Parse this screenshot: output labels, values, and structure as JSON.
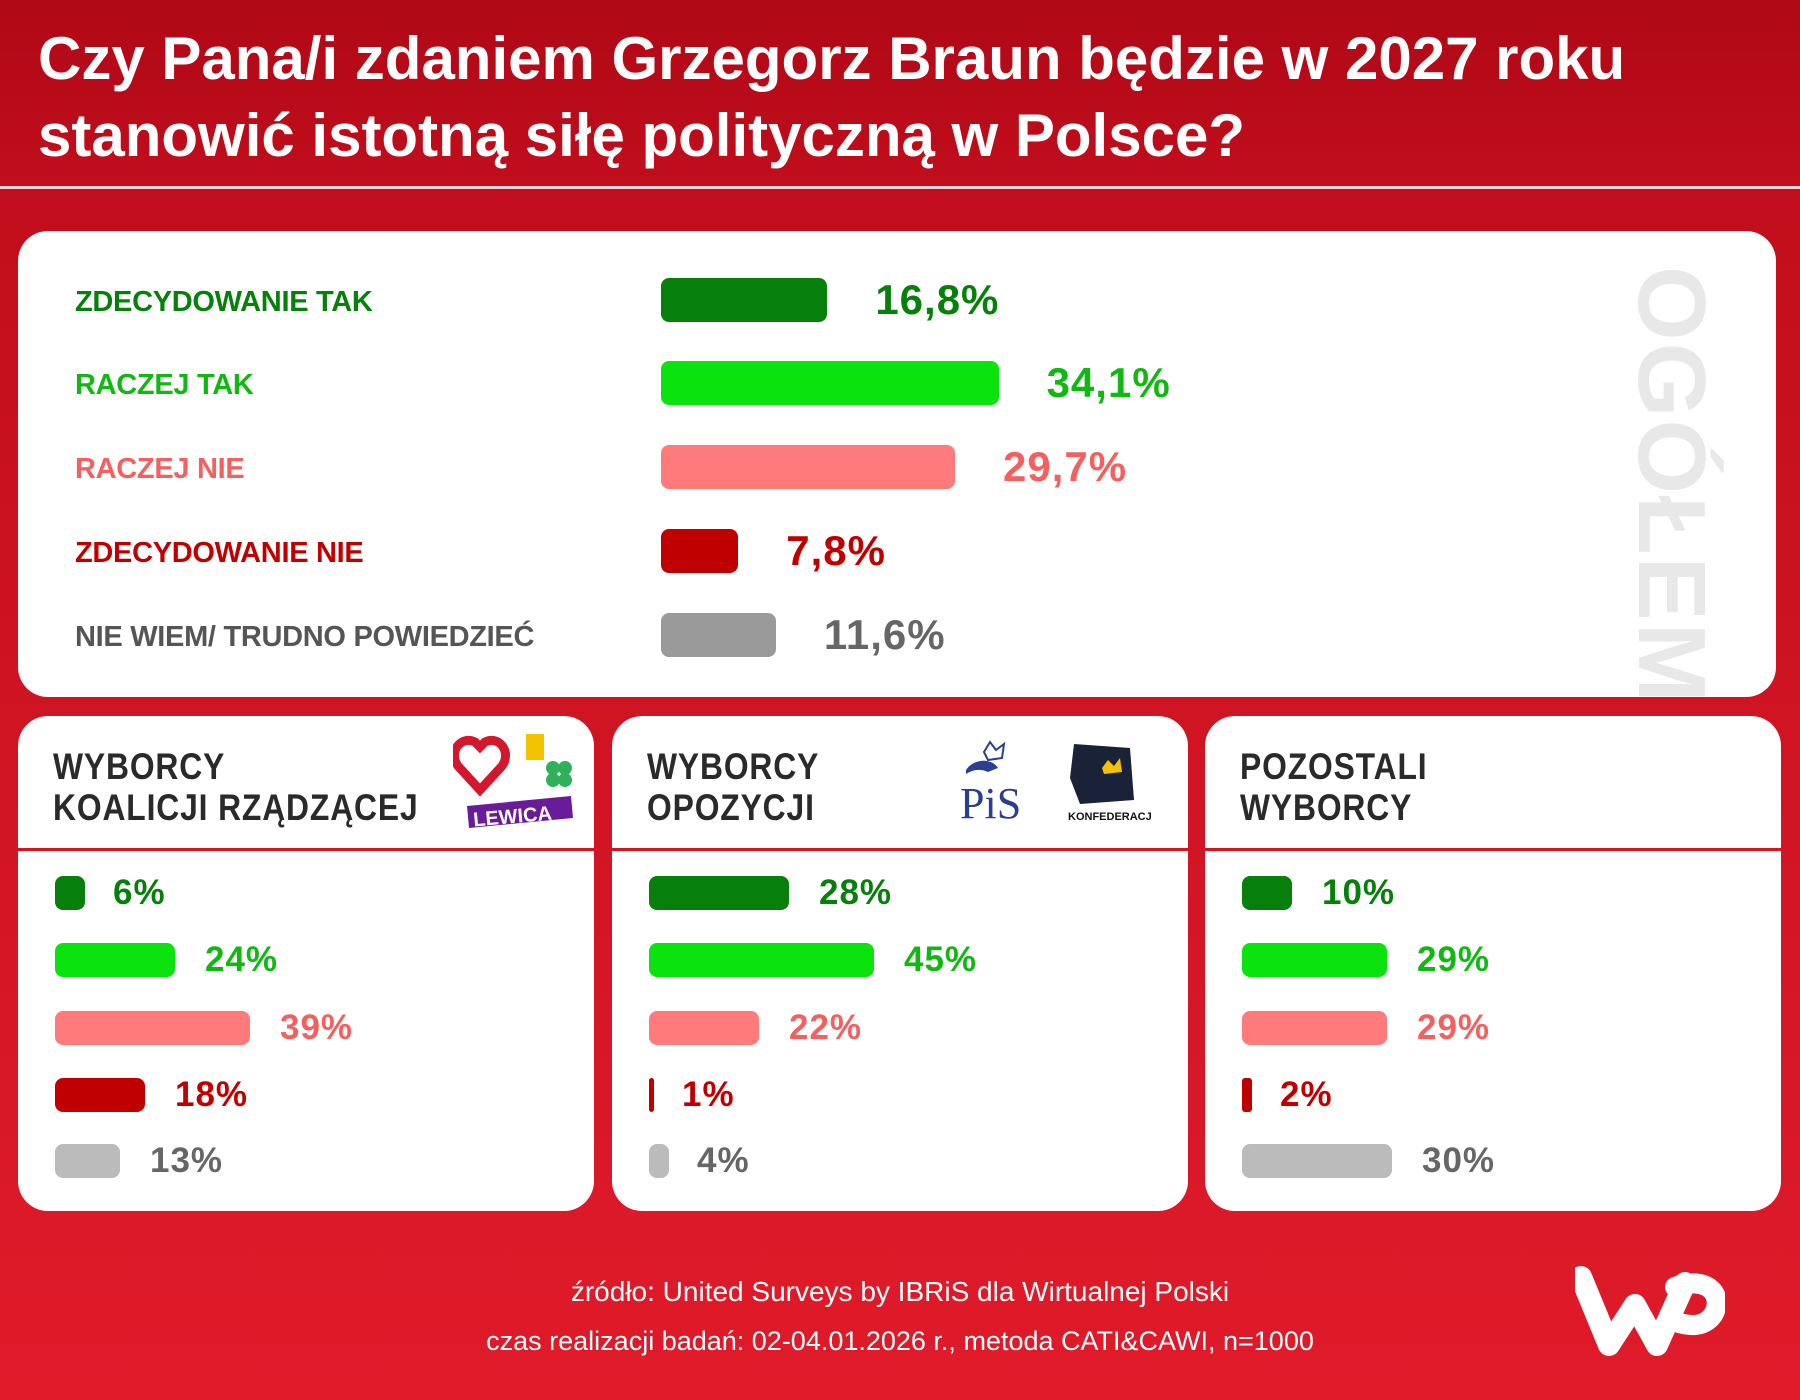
{
  "title": "Czy Pana/i zdaniem Grzegorz Braun będzie w 2027 roku stanowić istotną siłę polityczną w Polsce?",
  "colors": {
    "strong_yes": "#06800a",
    "yes": "#0be30e",
    "no": "#ff7b7b",
    "strong_no": "#c00000",
    "dont_know": "#9a9a9a",
    "dont_know_small": "#bbbbbb",
    "background": "#d6141f"
  },
  "chart_data": [
    {
      "type": "bar",
      "title": "OGÓŁEM",
      "categories": [
        "ZDECYDOWANIE TAK",
        "RACZEJ TAK",
        "RACZEJ NIE",
        "ZDECYDOWANIE NIE",
        "NIE WIEM/ TRUDNO POWIEDZIEĆ"
      ],
      "values": [
        16.8,
        34.1,
        29.7,
        7.8,
        11.6
      ],
      "labels": [
        "16,8%",
        "34,1%",
        "29,7%",
        "7,8%",
        "11,6%"
      ]
    },
    {
      "type": "bar",
      "title": "WYBORCY KOALICJI RZĄDZĄCEJ",
      "title_lines": [
        "WYBORCY",
        "KOALICJI RZĄDZĄCEJ"
      ],
      "logos": [
        "heart-logo",
        "polska-2050-logo",
        "psl-clover-logo",
        "LEWICA"
      ],
      "values": [
        6,
        24,
        39,
        18,
        13
      ],
      "labels": [
        "6%",
        "24%",
        "39%",
        "18%",
        "13%"
      ]
    },
    {
      "type": "bar",
      "title": "WYBORCY OPOZYCJI",
      "title_lines": [
        "WYBORCY",
        "OPOZYCJI"
      ],
      "logos": [
        "PiS",
        "KONFEDERACJA"
      ],
      "values": [
        28,
        45,
        22,
        1,
        4
      ],
      "labels": [
        "28%",
        "45%",
        "22%",
        "1%",
        "4%"
      ]
    },
    {
      "type": "bar",
      "title": "POZOSTALI WYBORCY",
      "title_lines": [
        "POZOSTALI",
        "WYBORCY"
      ],
      "values": [
        10,
        29,
        29,
        2,
        30
      ],
      "labels": [
        "10%",
        "29%",
        "29%",
        "2%",
        "30%"
      ]
    }
  ],
  "footer": {
    "source": "źródło: United Surveys by IBRiS dla Wirtualnej Polski",
    "method": "czas realizacji badań: 02-04.01.2026 r., metoda CATI&CAWI, n=1000"
  }
}
